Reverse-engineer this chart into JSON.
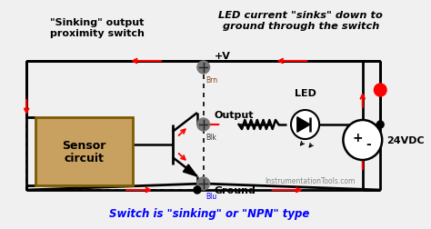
{
  "bg_color": "#2a2a2a",
  "title_left": "\"Sinking\" output\nproximity switch",
  "title_right": "LED current \"sinks\" down to\nground through the switch",
  "bottom_text": "Switch is \"sinking\" or \"NPN\" type",
  "watermark": "InstrumentationTools.com",
  "label_Brn": "Brn",
  "label_Blk": "Blk",
  "label_Blu": "Blu",
  "label_pV": "+V",
  "label_Output": "Output",
  "label_Ground": "Ground",
  "label_LED": "LED",
  "label_24VDC": "24VDC",
  "label_sensor": "Sensor\ncircuit",
  "label_plus": "+",
  "label_minus": "-"
}
